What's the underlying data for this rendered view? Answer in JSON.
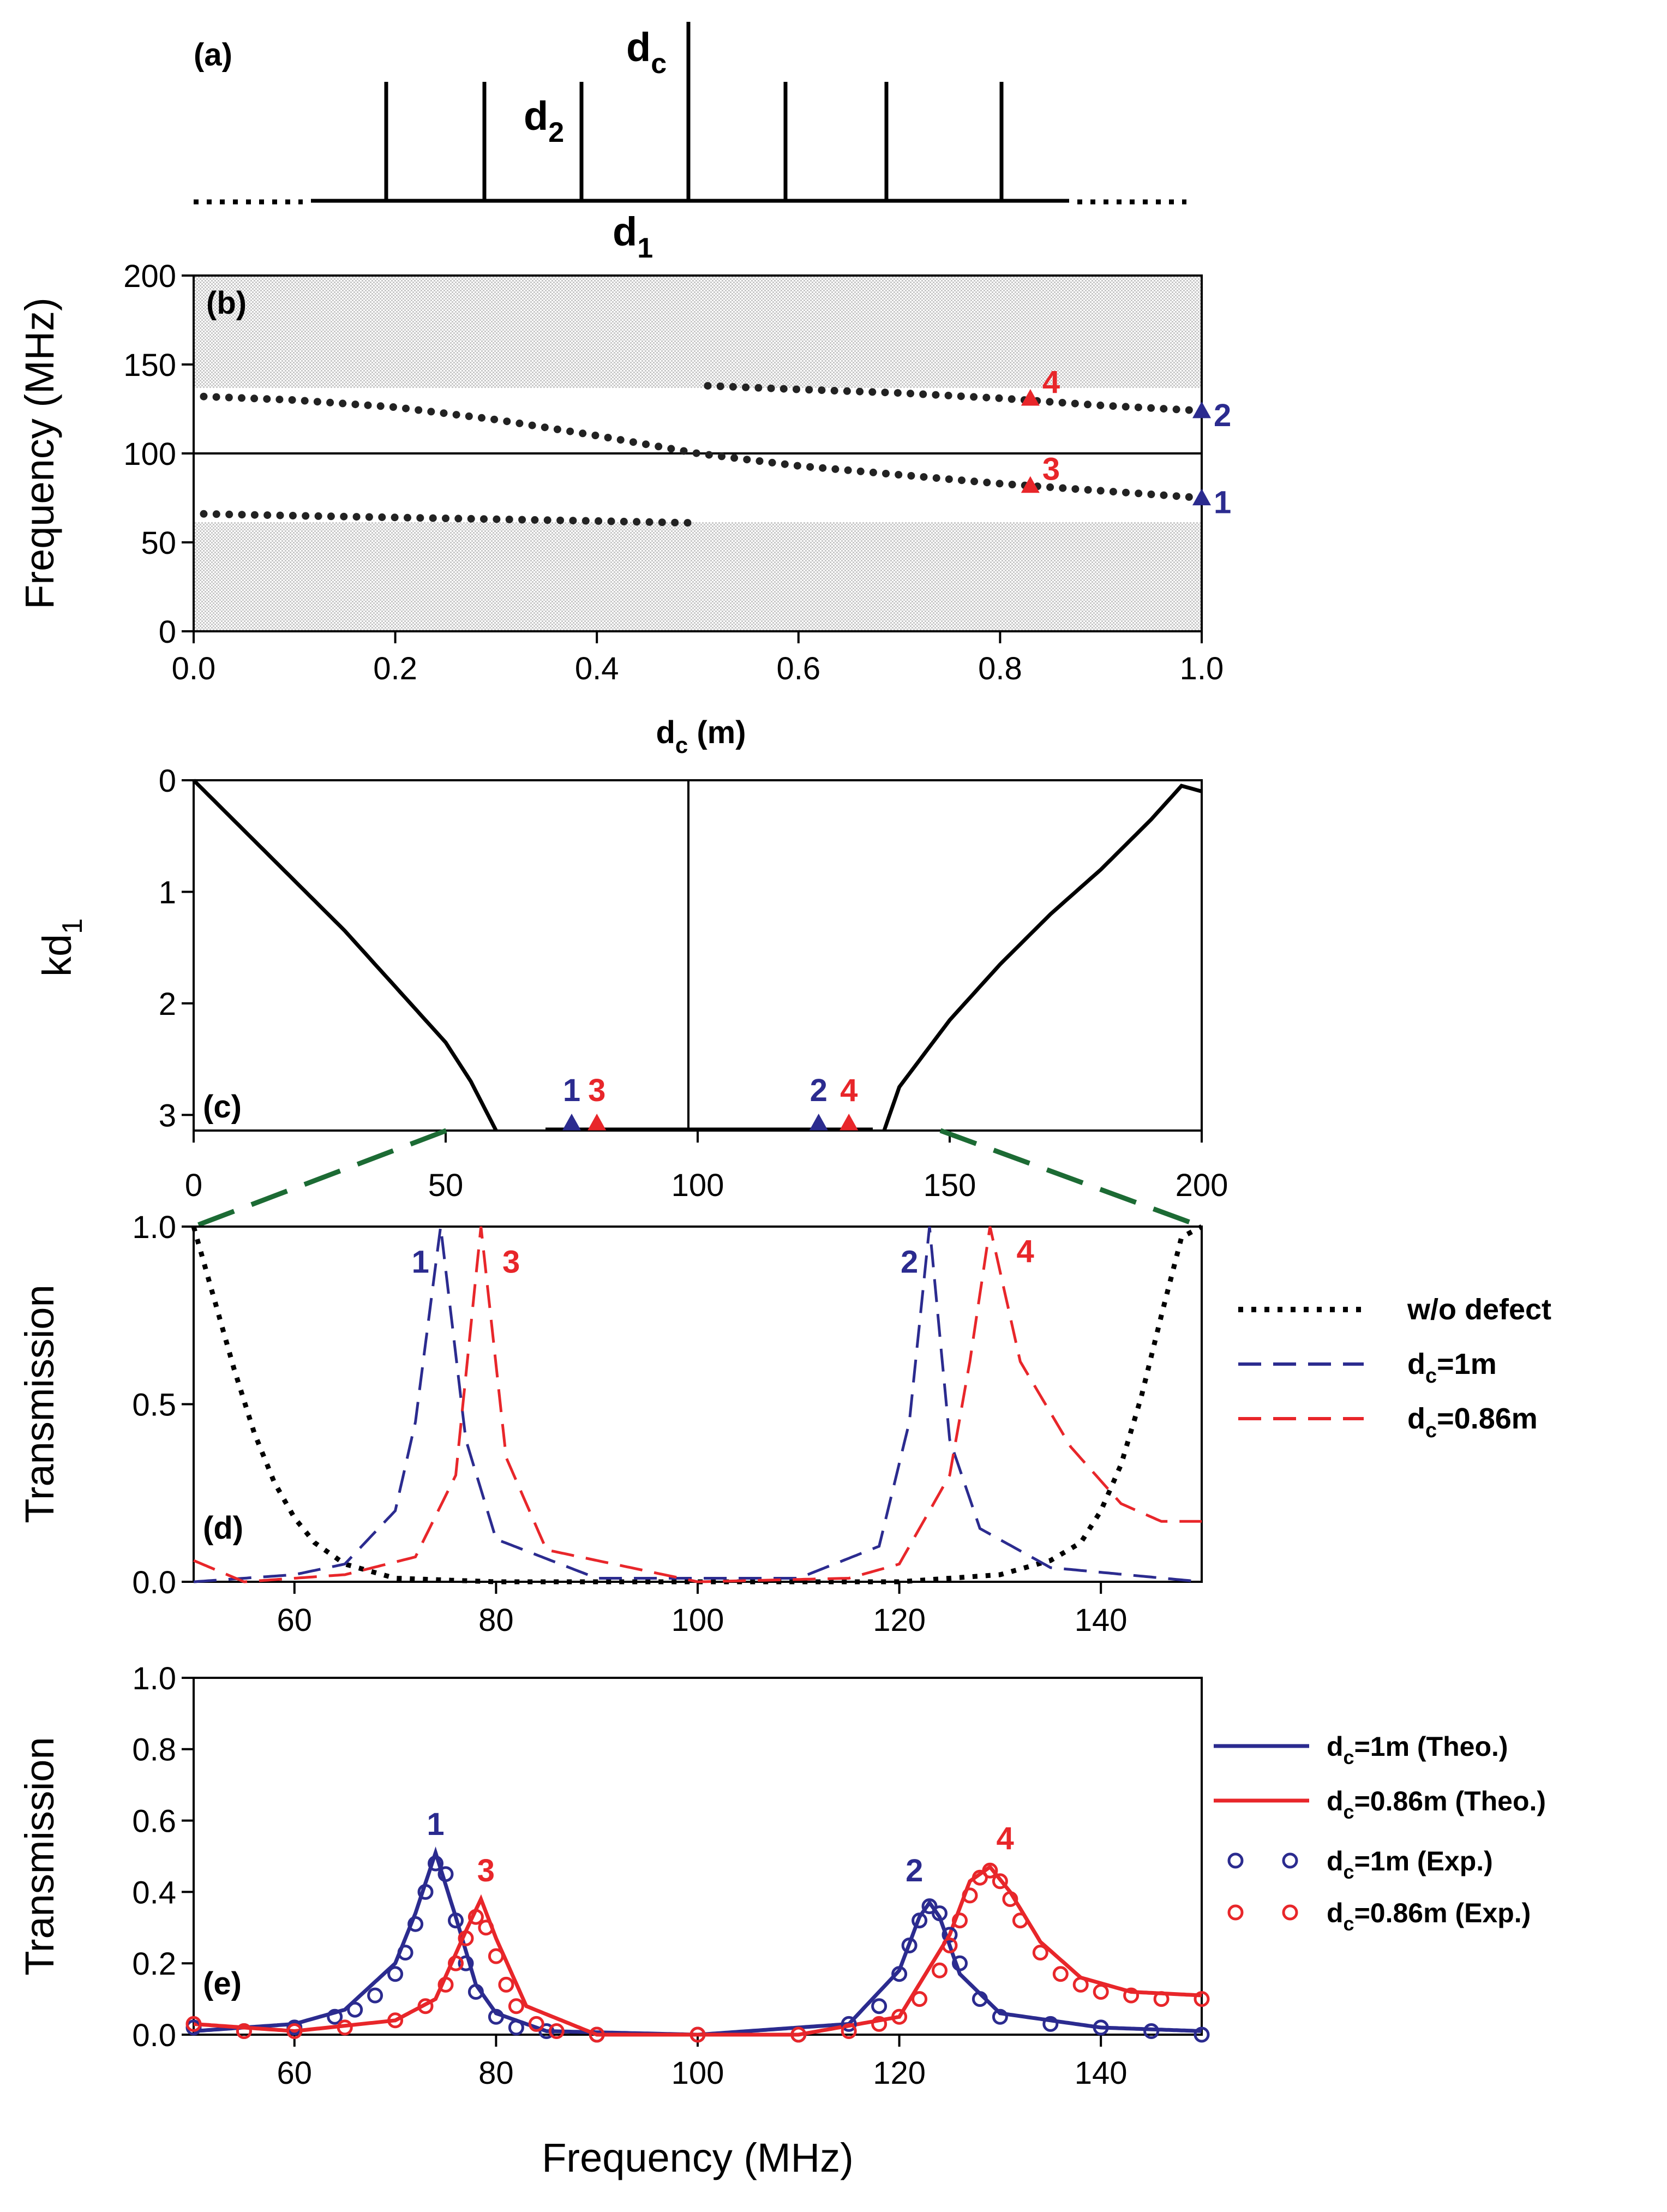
{
  "colors": {
    "blue": "#2b2b8f",
    "red": "#e8262a",
    "green": "#1c6b34",
    "black": "#000000",
    "band": "#d9d9d9"
  },
  "panel_a": {
    "label": "(a)",
    "dc": {
      "main": "d",
      "sub": "c"
    },
    "d2": {
      "main": "d",
      "sub": "2"
    },
    "d1": {
      "main": "d",
      "sub": "1"
    }
  },
  "panel_b": {
    "label": "(b)",
    "ylabel": "Frequency (MHz)",
    "xlabel_main": "d",
    "xlabel_sub": "c",
    "xlabel_rest": " (m)",
    "markers": [
      "1",
      "2",
      "3",
      "4"
    ]
  },
  "panel_c": {
    "label": "(c)",
    "ylabel_main": "kd",
    "ylabel_sub": "1",
    "markers": [
      "1",
      "3",
      "2",
      "4"
    ]
  },
  "panel_d": {
    "label": "(d)",
    "ylabel": "Transmission",
    "peak_labels": [
      "1",
      "3",
      "2",
      "4"
    ],
    "legend": [
      {
        "main": "w/o defect",
        "sub": "",
        "rest": ""
      },
      {
        "main": "d",
        "sub": "c",
        "rest": "=1m"
      },
      {
        "main": "d",
        "sub": "c",
        "rest": "=0.86m"
      }
    ]
  },
  "panel_e": {
    "label": "(e)",
    "ylabel": "Transmission",
    "xlabel": "Frequency (MHz)",
    "peak_labels": [
      "1",
      "3",
      "2",
      "4"
    ],
    "legend": [
      {
        "main": "d",
        "sub": "c",
        "rest": "=1m (Theo.)"
      },
      {
        "main": "d",
        "sub": "c",
        "rest": "=0.86m (Theo.)"
      },
      {
        "main": "d",
        "sub": "c",
        "rest": "=1m (Exp.)"
      },
      {
        "main": "d",
        "sub": "c",
        "rest": "=0.86m (Exp.)"
      }
    ]
  },
  "chart_data": [
    {
      "panel": "b",
      "type": "scatter",
      "xlabel": "dc (m)",
      "ylabel": "Frequency (MHz)",
      "xlim": [
        0,
        1.0
      ],
      "ylim": [
        0,
        200
      ],
      "xticks": [
        "0.0",
        "0.2",
        "0.4",
        "0.6",
        "0.8",
        "1.0"
      ],
      "yticks": [
        "0",
        "50",
        "100",
        "150",
        "200"
      ],
      "band_gaps": [
        [
          0,
          61
        ],
        [
          137,
          200
        ]
      ],
      "series": [
        {
          "x": [
            0.01,
            0.1,
            0.2,
            0.3,
            0.4,
            0.49
          ],
          "y": [
            66,
            65,
            64,
            63,
            62,
            61
          ]
        },
        {
          "x": [
            0.01,
            0.1,
            0.2,
            0.3,
            0.4,
            0.5,
            0.6,
            0.7,
            0.8,
            0.9,
            1.0
          ],
          "y": [
            132,
            130,
            126,
            119,
            110,
            100,
            93,
            88,
            83,
            79,
            75
          ]
        },
        {
          "x": [
            0.51,
            0.6,
            0.7,
            0.8,
            0.9,
            1.0
          ],
          "y": [
            138,
            136,
            134,
            131,
            127,
            124
          ]
        }
      ],
      "markers": [
        {
          "label": "1",
          "x": 1.0,
          "y": 75,
          "color": "blue"
        },
        {
          "label": "2",
          "x": 1.0,
          "y": 124,
          "color": "blue"
        },
        {
          "label": "3",
          "x": 0.83,
          "y": 82,
          "color": "red"
        },
        {
          "label": "4",
          "x": 0.83,
          "y": 131,
          "color": "red"
        }
      ]
    },
    {
      "panel": "c",
      "type": "line",
      "ylabel": "kd1",
      "xlim": [
        0,
        200
      ],
      "ylim": [
        3.14,
        0
      ],
      "xticks": [
        "0",
        "50",
        "100",
        "150",
        "200"
      ],
      "yticks": [
        "0",
        "1",
        "2",
        "3"
      ],
      "series": [
        {
          "x": [
            0,
            10,
            20,
            30,
            40,
            50,
            55,
            60
          ],
          "y": [
            0,
            0.45,
            0.9,
            1.35,
            1.85,
            2.35,
            2.7,
            3.14
          ]
        },
        {
          "x": [
            137,
            140,
            150,
            160,
            170,
            180,
            190,
            196,
            200
          ],
          "y": [
            3.14,
            2.75,
            2.15,
            1.65,
            1.2,
            0.8,
            0.35,
            0.05,
            0.1
          ]
        }
      ],
      "markers": [
        {
          "label": "1",
          "x": 75,
          "y": 3.14,
          "color": "blue"
        },
        {
          "label": "3",
          "x": 80,
          "y": 3.14,
          "color": "red"
        },
        {
          "label": "2",
          "x": 124,
          "y": 3.14,
          "color": "blue"
        },
        {
          "label": "4",
          "x": 130,
          "y": 3.14,
          "color": "red"
        }
      ]
    },
    {
      "panel": "d",
      "type": "line",
      "ylabel": "Transmission",
      "xlim": [
        50,
        150
      ],
      "ylim": [
        0,
        1.0
      ],
      "xticks": [
        "60",
        "80",
        "100",
        "120",
        "140"
      ],
      "yticks": [
        "0.0",
        "0.5",
        "1.0"
      ],
      "top_xticks": [
        "0",
        "50",
        "100",
        "150",
        "200"
      ],
      "series": [
        {
          "name": "w/o defect",
          "x": [
            50,
            52,
            54,
            56,
            58,
            60,
            62,
            65,
            70,
            80,
            100,
            120,
            130,
            135,
            138,
            140,
            142,
            144,
            146,
            148,
            150
          ],
          "y": [
            1.0,
            0.8,
            0.6,
            0.42,
            0.28,
            0.18,
            0.11,
            0.05,
            0.01,
            0.0,
            0.0,
            0.0,
            0.02,
            0.06,
            0.11,
            0.2,
            0.33,
            0.52,
            0.75,
            0.97,
            1.0
          ]
        },
        {
          "name": "dc=1m",
          "x": [
            50,
            60,
            65,
            70,
            72,
            74.5,
            77,
            80,
            90,
            110,
            118,
            121,
            123,
            125,
            128,
            135,
            150
          ],
          "y": [
            0.0,
            0.02,
            0.05,
            0.2,
            0.45,
            1.0,
            0.4,
            0.12,
            0.01,
            0.01,
            0.1,
            0.45,
            1.0,
            0.4,
            0.15,
            0.04,
            0.0
          ]
        },
        {
          "name": "dc=0.86m",
          "x": [
            50,
            55,
            65,
            72,
            76,
            78.5,
            81,
            85,
            100,
            115,
            120,
            125,
            127,
            129,
            132,
            137,
            142,
            146,
            150
          ],
          "y": [
            0.06,
            0.0,
            0.02,
            0.07,
            0.3,
            1.0,
            0.35,
            0.09,
            0.0,
            0.01,
            0.05,
            0.3,
            0.62,
            1.0,
            0.62,
            0.38,
            0.22,
            0.17,
            0.17
          ]
        }
      ]
    },
    {
      "panel": "e",
      "type": "line",
      "xlabel": "Frequency (MHz)",
      "ylabel": "Transmission",
      "xlim": [
        50,
        150
      ],
      "ylim": [
        0,
        1.0
      ],
      "xticks": [
        "60",
        "80",
        "100",
        "120",
        "140"
      ],
      "yticks": [
        "0.0",
        "0.2",
        "0.4",
        "0.6",
        "0.8",
        "1.0"
      ],
      "series": [
        {
          "name": "dc=1m (Theo.)",
          "x": [
            50,
            60,
            65,
            70,
            72,
            74,
            76,
            78,
            80,
            85,
            100,
            115,
            120,
            122,
            123,
            124,
            126,
            130,
            140,
            150
          ],
          "y": [
            0.01,
            0.03,
            0.07,
            0.2,
            0.34,
            0.51,
            0.33,
            0.14,
            0.06,
            0.01,
            0.0,
            0.03,
            0.18,
            0.33,
            0.37,
            0.33,
            0.17,
            0.06,
            0.02,
            0.01
          ]
        },
        {
          "name": "dc=0.86m (Theo.)",
          "x": [
            50,
            60,
            70,
            74,
            77,
            78.5,
            80,
            83,
            90,
            110,
            120,
            125,
            127,
            129,
            131,
            134,
            138,
            143,
            150
          ],
          "y": [
            0.03,
            0.01,
            0.04,
            0.1,
            0.29,
            0.38,
            0.27,
            0.08,
            0.0,
            0.0,
            0.05,
            0.28,
            0.43,
            0.47,
            0.4,
            0.26,
            0.16,
            0.12,
            0.11
          ]
        },
        {
          "name": "dc=1m (Exp.)",
          "x": [
            50,
            55,
            60,
            64,
            66,
            68,
            70,
            71,
            72,
            73,
            74,
            75,
            76,
            77,
            78,
            80,
            82,
            85,
            90,
            100,
            110,
            115,
            118,
            120,
            121,
            122,
            123,
            124,
            125,
            126,
            128,
            130,
            135,
            140,
            145,
            150
          ],
          "y": [
            0.02,
            0.01,
            0.02,
            0.05,
            0.07,
            0.11,
            0.17,
            0.23,
            0.31,
            0.4,
            0.48,
            0.45,
            0.32,
            0.2,
            0.12,
            0.05,
            0.02,
            0.01,
            0.0,
            0.0,
            0.0,
            0.03,
            0.08,
            0.17,
            0.25,
            0.32,
            0.36,
            0.34,
            0.28,
            0.2,
            0.1,
            0.05,
            0.03,
            0.02,
            0.01,
            0.0
          ]
        },
        {
          "name": "dc=0.86m (Exp.)",
          "x": [
            50,
            55,
            60,
            65,
            70,
            73,
            75,
            76,
            77,
            78,
            79,
            80,
            81,
            82,
            84,
            86,
            90,
            100,
            110,
            115,
            118,
            120,
            122,
            124,
            125,
            126,
            127,
            128,
            129,
            130,
            131,
            132,
            134,
            136,
            138,
            140,
            143,
            146,
            150
          ],
          "y": [
            0.03,
            0.01,
            0.01,
            0.02,
            0.04,
            0.08,
            0.14,
            0.2,
            0.27,
            0.33,
            0.3,
            0.22,
            0.14,
            0.08,
            0.03,
            0.01,
            0.0,
            0.0,
            0.0,
            0.01,
            0.03,
            0.05,
            0.1,
            0.18,
            0.25,
            0.32,
            0.39,
            0.44,
            0.46,
            0.43,
            0.38,
            0.32,
            0.23,
            0.17,
            0.14,
            0.12,
            0.11,
            0.1,
            0.1
          ]
        }
      ]
    }
  ]
}
